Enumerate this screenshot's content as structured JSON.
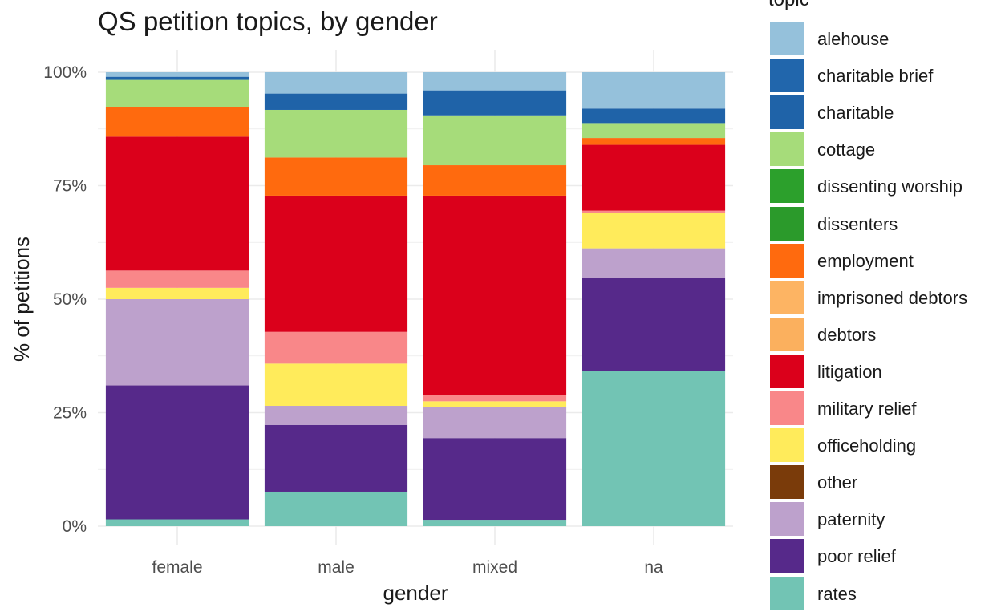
{
  "chart_data": {
    "type": "bar",
    "stacked": true,
    "percent": true,
    "title": "QS petition topics, by gender",
    "xlabel": "gender",
    "ylabel": "% of petitions",
    "ylim": [
      0,
      1
    ],
    "y_ticks": [
      "0%",
      "25%",
      "50%",
      "75%",
      "100%"
    ],
    "grid": true,
    "legend_title": "topic",
    "legend_position": "right",
    "categories": [
      "female",
      "male",
      "mixed",
      "na"
    ],
    "series": [
      {
        "name": "alehouse",
        "color": "#95c1db",
        "values": [
          0.01,
          0.047,
          0.04,
          0.08
        ]
      },
      {
        "name": "charitable brief",
        "color": "#2166ac",
        "values": [
          0,
          0,
          0,
          0
        ]
      },
      {
        "name": "charitable",
        "color": "#1f63a8",
        "values": [
          0.007,
          0.036,
          0.055,
          0.032
        ]
      },
      {
        "name": "cottage",
        "color": "#a6dc7a",
        "values": [
          0.06,
          0.105,
          0.11,
          0.033
        ]
      },
      {
        "name": "dissenting worship",
        "color": "#2ca02c",
        "values": [
          0,
          0,
          0,
          0
        ]
      },
      {
        "name": "dissenters",
        "color": "#2b9a2b",
        "values": [
          0,
          0,
          0,
          0
        ]
      },
      {
        "name": "employment",
        "color": "#ff6a0e",
        "values": [
          0.065,
          0.084,
          0.067,
          0.015
        ]
      },
      {
        "name": "imprisoned debtors",
        "color": "#fdb463",
        "values": [
          0,
          0,
          0,
          0
        ]
      },
      {
        "name": "debtors",
        "color": "#fbb05e",
        "values": [
          0,
          0,
          0,
          0
        ]
      },
      {
        "name": "litigation",
        "color": "#db001b",
        "values": [
          0.295,
          0.3,
          0.44,
          0.145
        ]
      },
      {
        "name": "military relief",
        "color": "#f98789",
        "values": [
          0.038,
          0.07,
          0.013,
          0.005
        ]
      },
      {
        "name": "officeholding",
        "color": "#ffeb5b",
        "values": [
          0.025,
          0.093,
          0.013,
          0.078
        ]
      },
      {
        "name": "other",
        "color": "#7a3b0a",
        "values": [
          0,
          0,
          0,
          0
        ]
      },
      {
        "name": "paternity",
        "color": "#bda1cc",
        "values": [
          0.19,
          0.042,
          0.068,
          0.066
        ]
      },
      {
        "name": "poor relief",
        "color": "#56298a",
        "values": [
          0.295,
          0.147,
          0.18,
          0.205
        ]
      },
      {
        "name": "rates",
        "color": "#72c4b4",
        "values": [
          0.015,
          0.076,
          0.014,
          0.341
        ]
      }
    ]
  }
}
